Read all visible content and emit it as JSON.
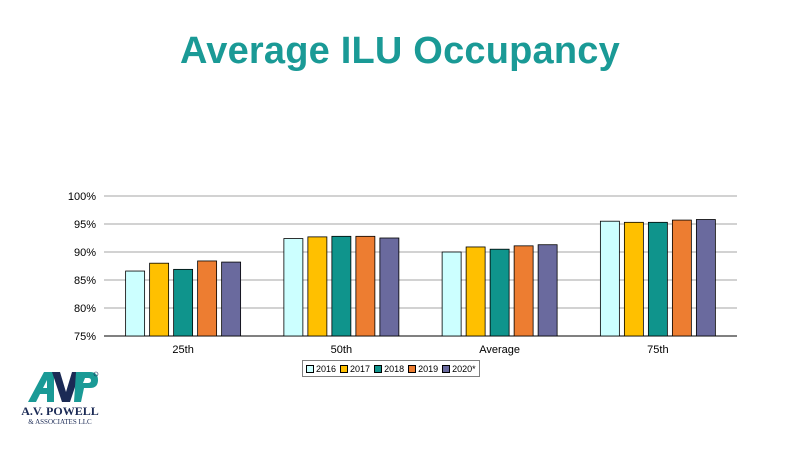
{
  "colors": {
    "title": "#1a9a96",
    "series": [
      "#ccffff",
      "#ffc000",
      "#0f948c",
      "#ed7d31",
      "#6a6a9e"
    ]
  },
  "logo": {
    "line1": "A.V. POWELL",
    "line2": "& ASSOCIATES LLC",
    "icon": "avp-logo-icon"
  },
  "chart_data": {
    "type": "bar",
    "title": "Average ILU Occupancy",
    "categories": [
      "25th",
      "50th",
      "Average",
      "75th"
    ],
    "series": [
      {
        "name": "2016",
        "values": [
          86.6,
          92.4,
          90.0,
          95.5
        ]
      },
      {
        "name": "2017",
        "values": [
          88.0,
          92.7,
          90.9,
          95.3
        ]
      },
      {
        "name": "2018",
        "values": [
          86.9,
          92.8,
          90.5,
          95.3
        ]
      },
      {
        "name": "2019",
        "values": [
          88.4,
          92.8,
          91.1,
          95.7
        ]
      },
      {
        "name": "2020*",
        "values": [
          88.2,
          92.5,
          91.3,
          95.8
        ]
      }
    ],
    "ylim": [
      75,
      100
    ],
    "yticks": [
      "75%",
      "80%",
      "85%",
      "90%",
      "95%",
      "100%"
    ],
    "grid": true,
    "legend": "bottom",
    "xlabel": "",
    "ylabel": ""
  }
}
